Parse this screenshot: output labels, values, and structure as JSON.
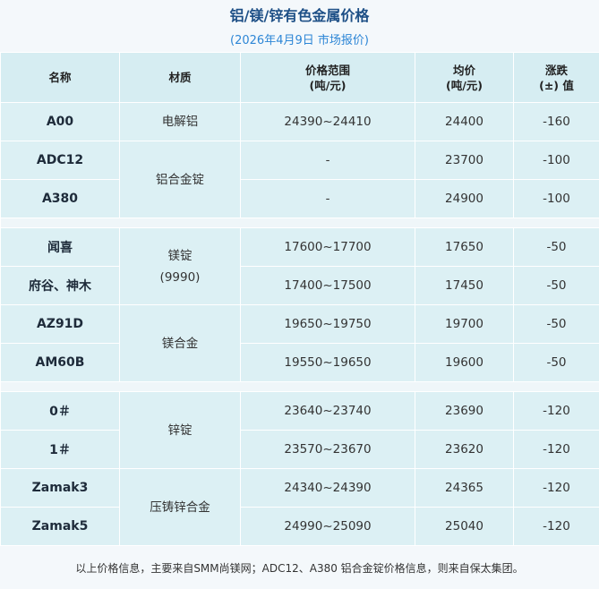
{
  "title": "铝/镁/锌有色金属价格",
  "subtitle": "(2026年4月9日 市场报价)",
  "table": {
    "headers": [
      "名称",
      "材质",
      "价格范围\n(吨/元)",
      "均价\n(吨/元)",
      "涨跌\n(±) 值"
    ],
    "groups": [
      {
        "materials": [
          {
            "material": "电解铝",
            "rows": [
              {
                "name": "A00",
                "range": "24390~24410",
                "avg": 24400,
                "change": -160
              }
            ]
          },
          {
            "material": "铝合金锭",
            "rows": [
              {
                "name": "ADC12",
                "range": "-",
                "avg": 23700,
                "change": -100
              },
              {
                "name": "A380",
                "range": "-",
                "avg": 24900,
                "change": -100
              }
            ]
          }
        ]
      },
      {
        "materials": [
          {
            "material": "镁锭\n(9990)",
            "rows": [
              {
                "name": "闻喜",
                "range": "17600~17700",
                "avg": 17650,
                "change": -50
              },
              {
                "name": "府谷、神木",
                "range": "17400~17500",
                "avg": 17450,
                "change": -50
              }
            ]
          },
          {
            "material": "镁合金",
            "rows": [
              {
                "name": "AZ91D",
                "range": "19650~19750",
                "avg": 19700,
                "change": -50
              },
              {
                "name": "AM60B",
                "range": "19550~19650",
                "avg": 19600,
                "change": -50
              }
            ]
          }
        ]
      },
      {
        "materials": [
          {
            "material": "锌锭",
            "rows": [
              {
                "name": "0＃",
                "range": "23640~23740",
                "avg": 23690,
                "change": -120
              },
              {
                "name": "1＃",
                "range": "23570~23670",
                "avg": 23620,
                "change": -120
              }
            ]
          },
          {
            "material": "压铸锌合金",
            "rows": [
              {
                "name": "Zamak3",
                "range": "24340~24390",
                "avg": 24365,
                "change": -120
              },
              {
                "name": "Zamak5",
                "range": "24990~25090",
                "avg": 25040,
                "change": -120
              }
            ]
          }
        ]
      }
    ]
  },
  "footnote": "以上价格信息，主要来自SMM尚镁网；ADC12、A380 铝合金锭价格信息，则来自保太集团。"
}
